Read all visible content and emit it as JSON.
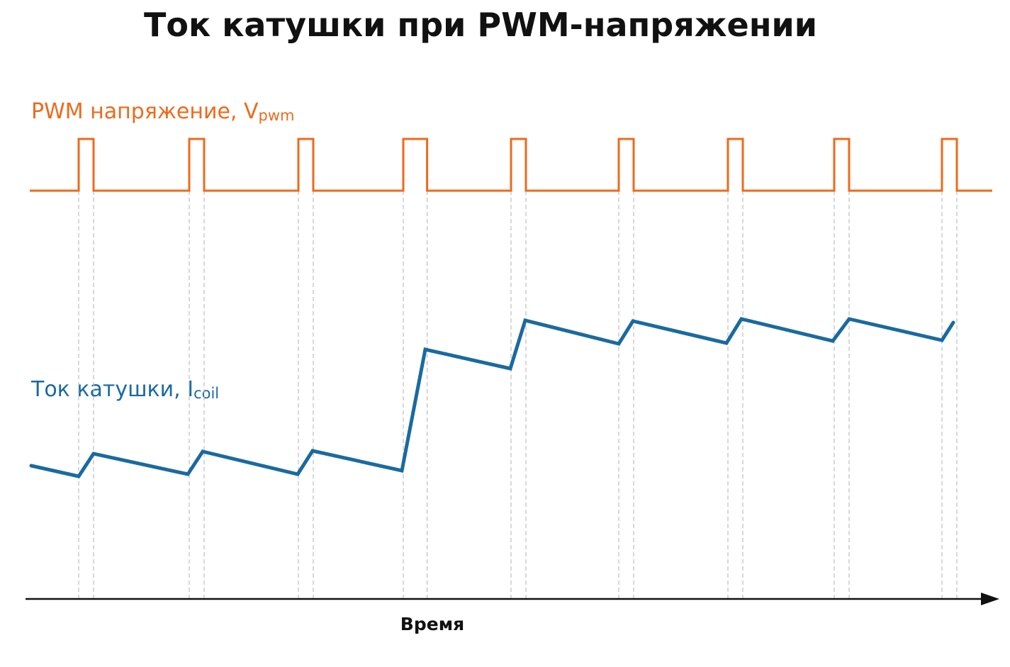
{
  "title": "Ток катушки при PWM-напряжении",
  "pwm_label": {
    "main": "PWM напряжение, V",
    "sub": "pwm"
  },
  "coil_label": {
    "main": "Ток катушки, I",
    "sub": "coil"
  },
  "x_axis_label": "Время",
  "colors": {
    "pwm": "#ee6a1c",
    "coil": "#1a6aa0",
    "axis": "#111111",
    "guides": "#bdbdbd"
  },
  "pulse_count": 9,
  "pulse_widths_relative": [
    1,
    1,
    1,
    1.6,
    1,
    1,
    1,
    1,
    1
  ]
}
